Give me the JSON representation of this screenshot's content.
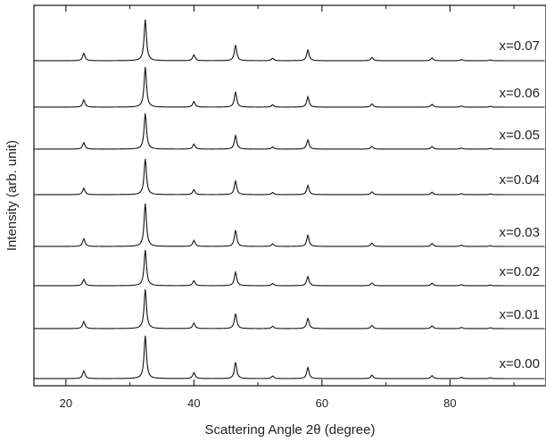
{
  "chart_data": {
    "type": "line",
    "title": "",
    "xlabel": "Scattering Angle 2θ  (degree)",
    "ylabel": "Intensity (arb. unit)",
    "xlim": [
      15,
      95
    ],
    "x_ticks": [
      20,
      40,
      60,
      80
    ],
    "x_tick_labels": [
      "20",
      "40",
      "60",
      "80"
    ],
    "grid": false,
    "legend": "none",
    "line_color": "#111111",
    "peaks": [
      {
        "position": 22.8,
        "relative_intensity": 0.18
      },
      {
        "position": 32.4,
        "relative_intensity": 1.0
      },
      {
        "position": 40.0,
        "relative_intensity": 0.14
      },
      {
        "position": 46.5,
        "relative_intensity": 0.38
      },
      {
        "position": 52.3,
        "relative_intensity": 0.06
      },
      {
        "position": 57.8,
        "relative_intensity": 0.26
      },
      {
        "position": 67.8,
        "relative_intensity": 0.08
      },
      {
        "position": 77.2,
        "relative_intensity": 0.07
      },
      {
        "position": 81.8,
        "relative_intensity": 0.03
      },
      {
        "position": 86.3,
        "relative_intensity": 0.02
      }
    ],
    "series": [
      {
        "name": "x=0.07"
      },
      {
        "name": "x=0.06"
      },
      {
        "name": "x=0.05"
      },
      {
        "name": "x=0.04"
      },
      {
        "name": "x=0.03"
      },
      {
        "name": "x=0.02"
      },
      {
        "name": "x=0.01"
      },
      {
        "name": "x=0.00"
      }
    ]
  }
}
